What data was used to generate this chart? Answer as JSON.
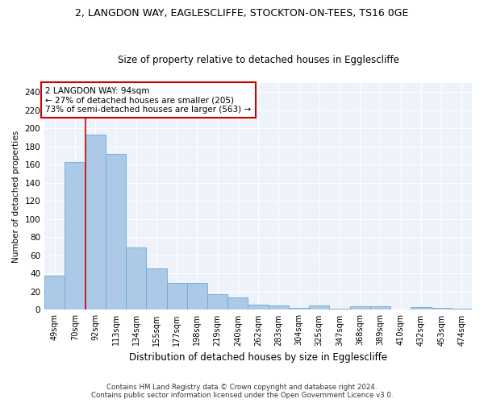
{
  "title": "2, LANGDON WAY, EAGLESCLIFFE, STOCKTON-ON-TEES, TS16 0GE",
  "subtitle": "Size of property relative to detached houses in Egglescliffe",
  "xlabel": "Distribution of detached houses by size in Egglescliffe",
  "ylabel": "Number of detached properties",
  "categories": [
    "49sqm",
    "70sqm",
    "92sqm",
    "113sqm",
    "134sqm",
    "155sqm",
    "177sqm",
    "198sqm",
    "219sqm",
    "240sqm",
    "262sqm",
    "283sqm",
    "304sqm",
    "325sqm",
    "347sqm",
    "368sqm",
    "389sqm",
    "410sqm",
    "432sqm",
    "453sqm",
    "474sqm"
  ],
  "values": [
    38,
    163,
    193,
    172,
    69,
    46,
    30,
    30,
    17,
    14,
    6,
    5,
    2,
    5,
    1,
    4,
    4,
    0,
    3,
    2,
    1
  ],
  "bar_color": "#adc9e8",
  "bar_edge_color": "#6aaad4",
  "annotation_box_line_color": "#cc0000",
  "annotation_line_color": "#cc0000",
  "property_marker_index": 2,
  "annotation_text_line1": "2 LANGDON WAY: 94sqm",
  "annotation_text_line2": "← 27% of detached houses are smaller (205)",
  "annotation_text_line3": "73% of semi-detached houses are larger (563) →",
  "ylim": [
    0,
    250
  ],
  "yticks": [
    0,
    20,
    40,
    60,
    80,
    100,
    120,
    140,
    160,
    180,
    200,
    220,
    240
  ],
  "footnote1": "Contains HM Land Registry data © Crown copyright and database right 2024.",
  "footnote2": "Contains public sector information licensed under the Open Government Licence v3.0.",
  "bg_color": "#eef2fa",
  "title_fontsize": 9,
  "subtitle_fontsize": 8.5
}
